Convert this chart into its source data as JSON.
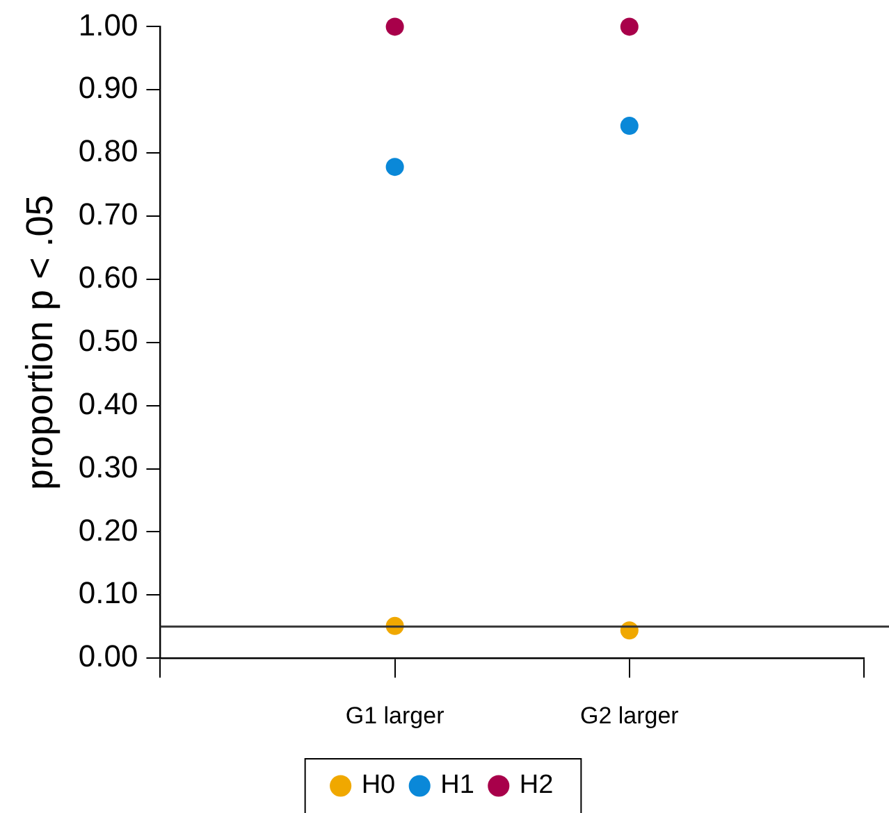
{
  "chart_data": {
    "type": "scatter",
    "ylabel": "proportion p < .05",
    "categories": [
      null,
      "G1 larger",
      "G2 larger",
      null
    ],
    "series": [
      {
        "name": "H0",
        "color": "#f0a800",
        "values": [
          null,
          0.051,
          0.044,
          null
        ]
      },
      {
        "name": "H1",
        "color": "#0a88d8",
        "values": [
          null,
          0.778,
          0.843,
          null
        ]
      },
      {
        "name": "H2",
        "color": "#a8004a",
        "values": [
          null,
          1.0,
          1.0,
          null
        ]
      }
    ],
    "ylim": [
      0,
      1
    ],
    "yticks": [
      {
        "value": 0,
        "label": "0.00"
      },
      {
        "value": 0.1,
        "label": "0.10"
      },
      {
        "value": 0.2,
        "label": "0.20"
      },
      {
        "value": 0.3,
        "label": "0.30"
      },
      {
        "value": 0.4,
        "label": "0.40"
      },
      {
        "value": 0.5,
        "label": "0.50"
      },
      {
        "value": 0.6,
        "label": "0.60"
      },
      {
        "value": 0.7,
        "label": "0.70"
      },
      {
        "value": 0.8,
        "label": "0.80"
      },
      {
        "value": 0.9,
        "label": "0.90"
      },
      {
        "value": 1,
        "label": "1.00"
      }
    ],
    "ref_lines": [
      {
        "axis": "y",
        "value": 0.05,
        "color": "#333333",
        "line_style": "solid"
      }
    ],
    "grid": false,
    "legend": "bottom",
    "marker": "circle"
  }
}
